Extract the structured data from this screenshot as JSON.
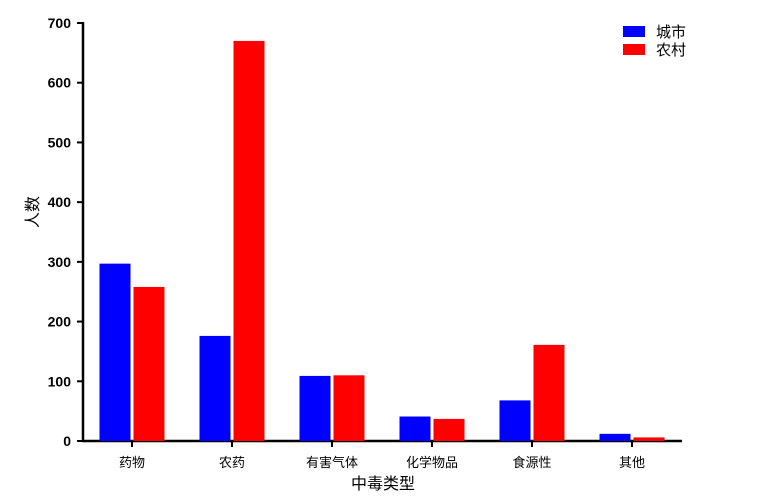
{
  "chart_data": {
    "type": "bar",
    "title": "",
    "xlabel": "中毒类型",
    "ylabel": "人数",
    "categories": [
      "药物",
      "农药",
      "有害气体",
      "化学物品",
      "食源性",
      "其他"
    ],
    "series": [
      {
        "name": "城市",
        "color": "#0000ff",
        "values": [
          297,
          176,
          109,
          41,
          68,
          12
        ]
      },
      {
        "name": "农村",
        "color": "#ff0000",
        "values": [
          258,
          670,
          110,
          37,
          161,
          6
        ]
      }
    ],
    "ylim": [
      0,
      700
    ],
    "yticks": [
      0,
      100,
      200,
      300,
      400,
      500,
      600,
      700
    ],
    "grid": false,
    "legend_position": "top-right"
  }
}
